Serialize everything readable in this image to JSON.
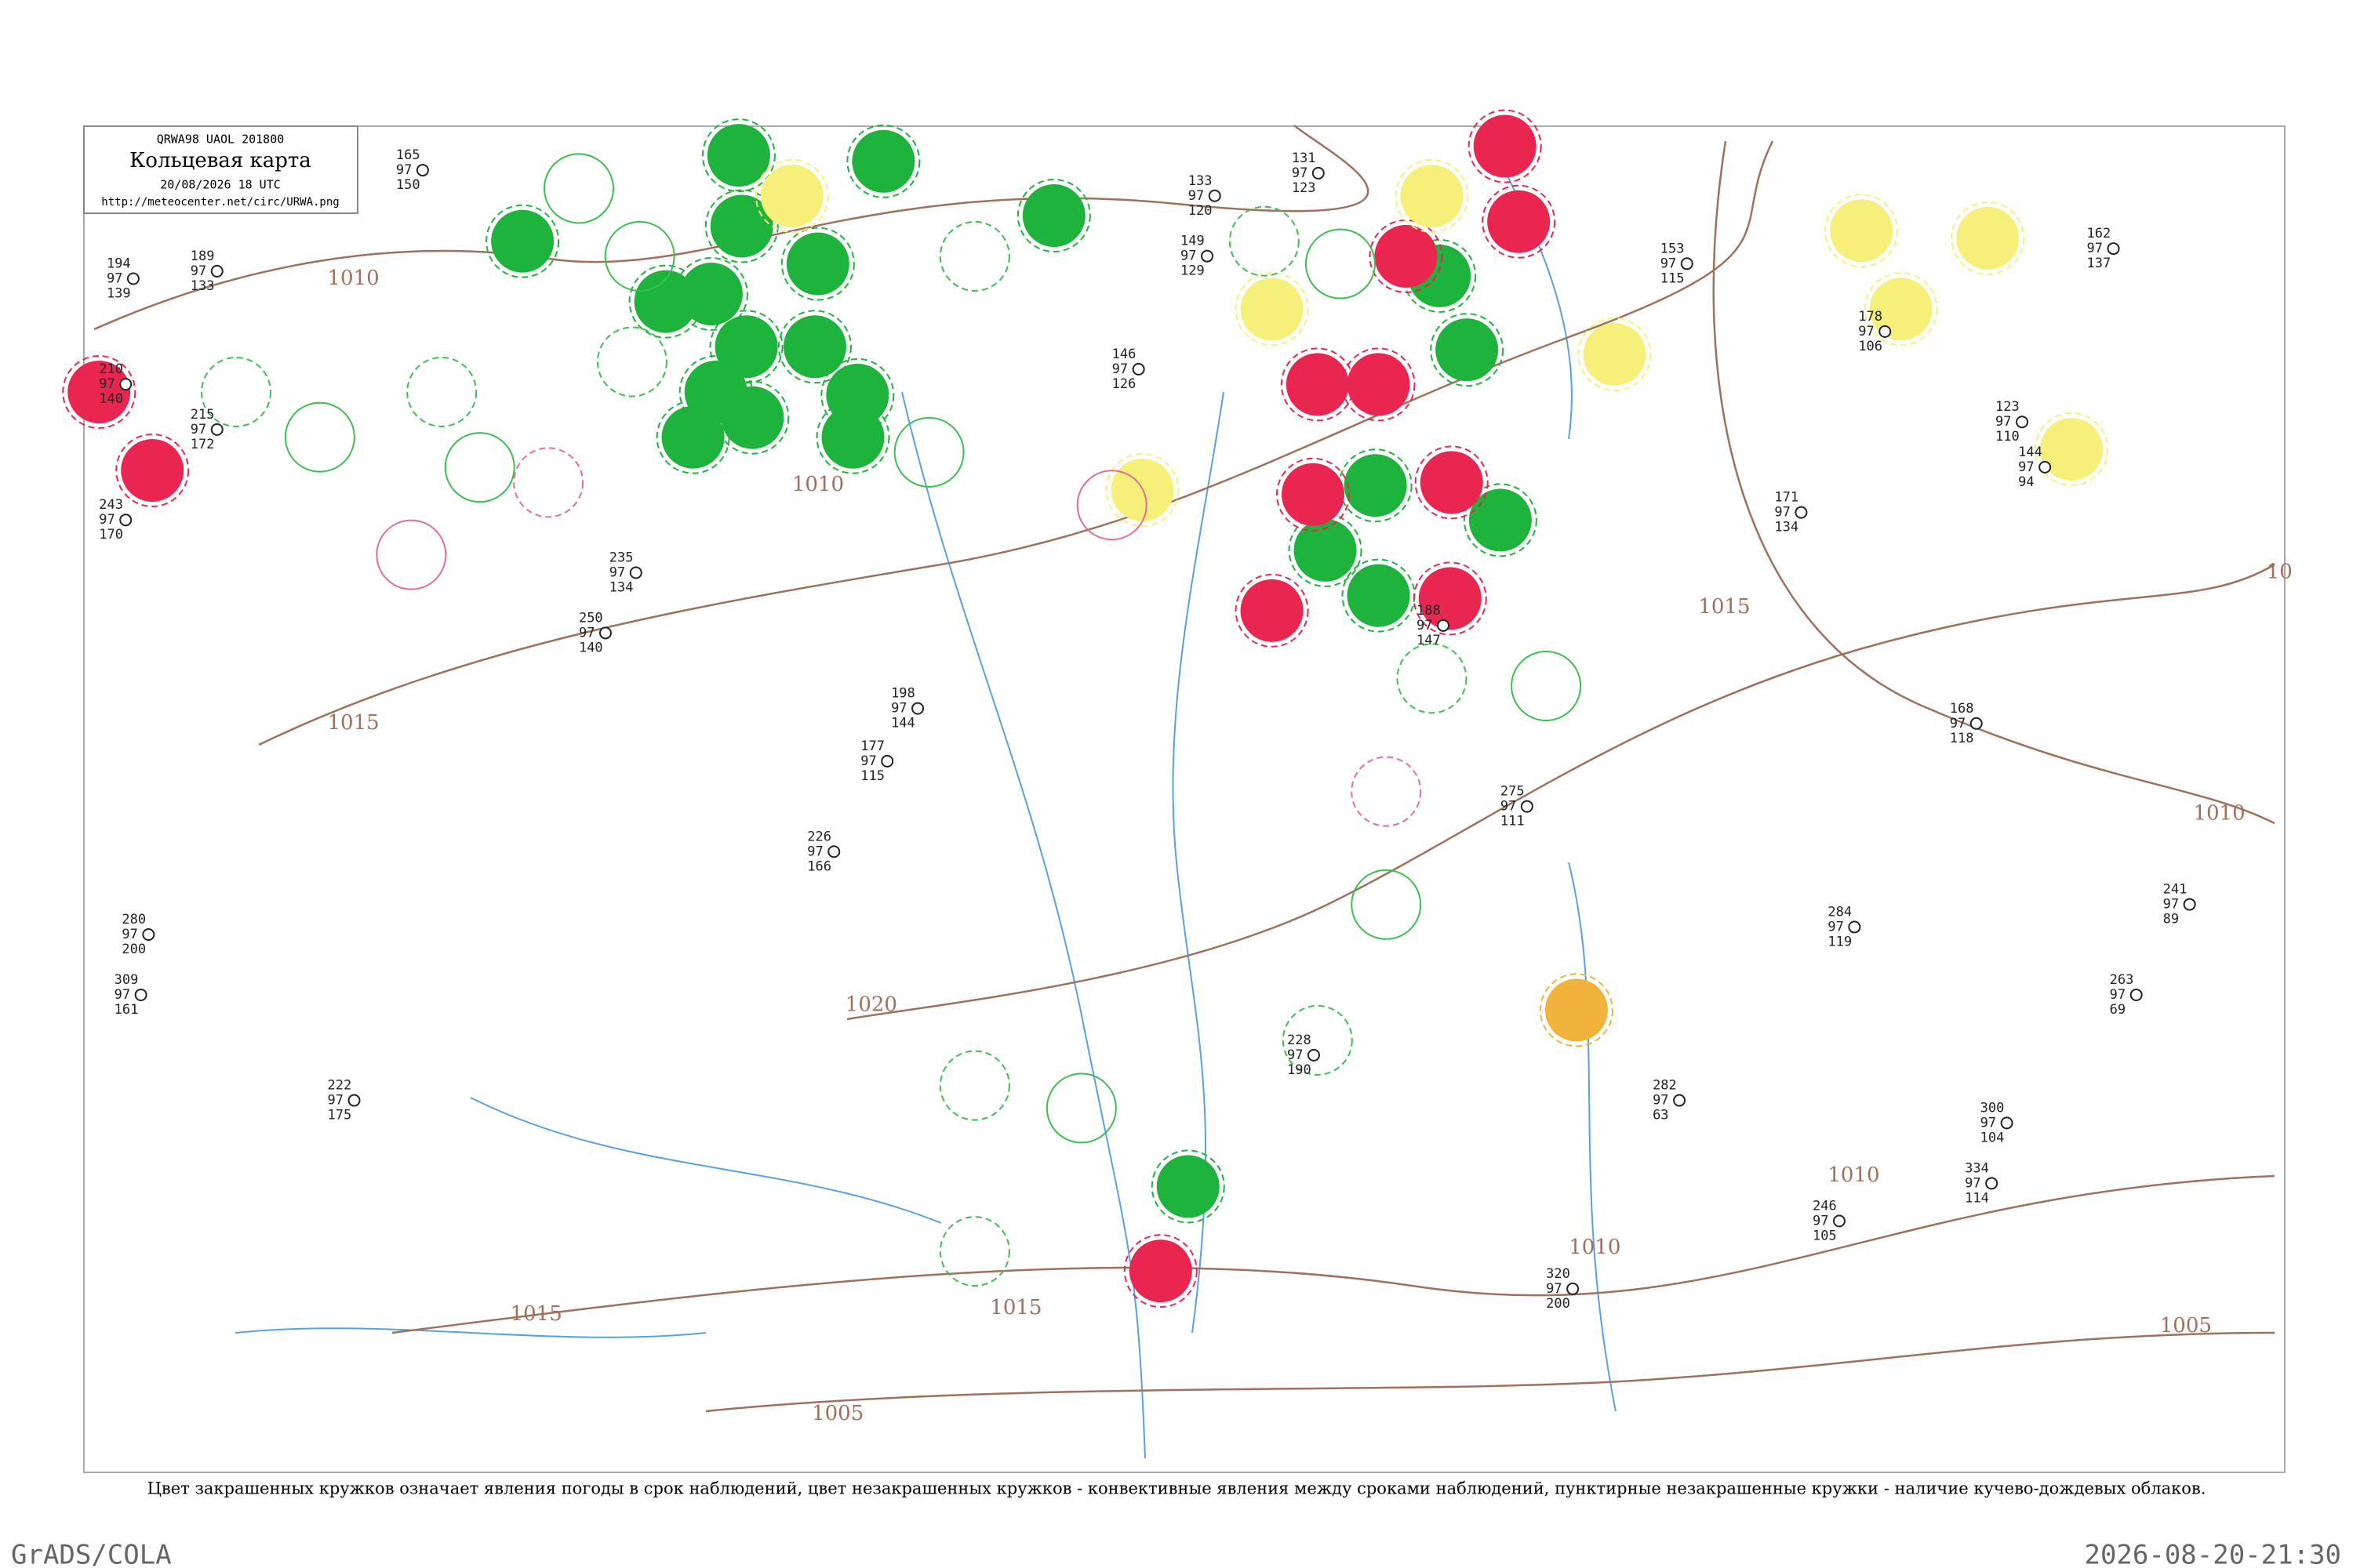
{
  "header": {
    "code": "QRWA98 UAOL 201800",
    "title": "Кольцевая карта",
    "datetime": "20/08/2026 18 UTC",
    "url": "http://meteocenter.net/circ/URWA.png"
  },
  "isobars": [
    "1010",
    "1015",
    "1010",
    "1015",
    "1020",
    "1015",
    "1005",
    "1010",
    "1010",
    "1005",
    "1015",
    "1010",
    "10"
  ],
  "stations": [
    {
      "a": "165",
      "b": "97",
      "c": "150"
    },
    {
      "a": "194",
      "b": "97",
      "c": "139"
    },
    {
      "a": "189",
      "b": "97",
      "c": "133"
    },
    {
      "a": "210",
      "b": "97",
      "c": "140"
    },
    {
      "a": "215",
      "b": "97",
      "c": "172"
    },
    {
      "a": "243",
      "b": "97",
      "c": "170"
    },
    {
      "a": "133",
      "b": "97",
      "c": "120"
    },
    {
      "a": "149",
      "b": "97",
      "c": "129"
    },
    {
      "a": "146",
      "b": "97",
      "c": "126"
    },
    {
      "a": "131",
      "b": "97",
      "c": "123"
    },
    {
      "a": "153",
      "b": "97",
      "c": "115"
    },
    {
      "a": "171",
      "b": "97",
      "c": "134"
    },
    {
      "a": "162",
      "b": "97",
      "c": "137"
    },
    {
      "a": "280",
      "b": "97",
      "c": "200"
    },
    {
      "a": "309",
      "b": "97",
      "c": "161"
    },
    {
      "a": "222",
      "b": "97",
      "c": "175"
    },
    {
      "a": "198",
      "b": "97",
      "c": "144"
    },
    {
      "a": "226",
      "b": "97",
      "c": "166"
    },
    {
      "a": "177",
      "b": "97",
      "c": "115"
    },
    {
      "a": "246",
      "b": "97",
      "c": "105"
    },
    {
      "a": "228",
      "b": "97",
      "c": "190"
    },
    {
      "a": "282",
      "b": "97",
      "c": "63"
    },
    {
      "a": "320",
      "b": "97",
      "c": "200"
    },
    {
      "a": "300",
      "b": "97",
      "c": "104"
    },
    {
      "a": "168",
      "b": "97",
      "c": "118"
    },
    {
      "a": "263",
      "b": "97",
      "c": "69"
    },
    {
      "a": "284",
      "b": "97",
      "c": "119"
    },
    {
      "a": "241",
      "b": "97",
      "c": "89"
    },
    {
      "a": "178",
      "b": "97",
      "c": "106"
    },
    {
      "a": "144",
      "b": "97",
      "c": "94"
    },
    {
      "a": "123",
      "b": "97",
      "c": "110"
    },
    {
      "a": "334",
      "b": "97",
      "c": "114"
    },
    {
      "a": "235",
      "b": "97",
      "c": "134"
    },
    {
      "a": "250",
      "b": "97",
      "c": "140"
    },
    {
      "a": "188",
      "b": "97",
      "c": "147"
    },
    {
      "a": "275",
      "b": "97",
      "c": "111"
    }
  ],
  "caption": "Цвет закрашенных кружков означает явления погоды в срок наблюдений, цвет незакрашенных кружков - конвективные явления между сроками наблюдений, пунктирные незакрашенные кружки - наличие кучево-дождевых облаков.",
  "footer": {
    "left": "GrADS/COLA",
    "right": "2026-08-20-21:30"
  }
}
